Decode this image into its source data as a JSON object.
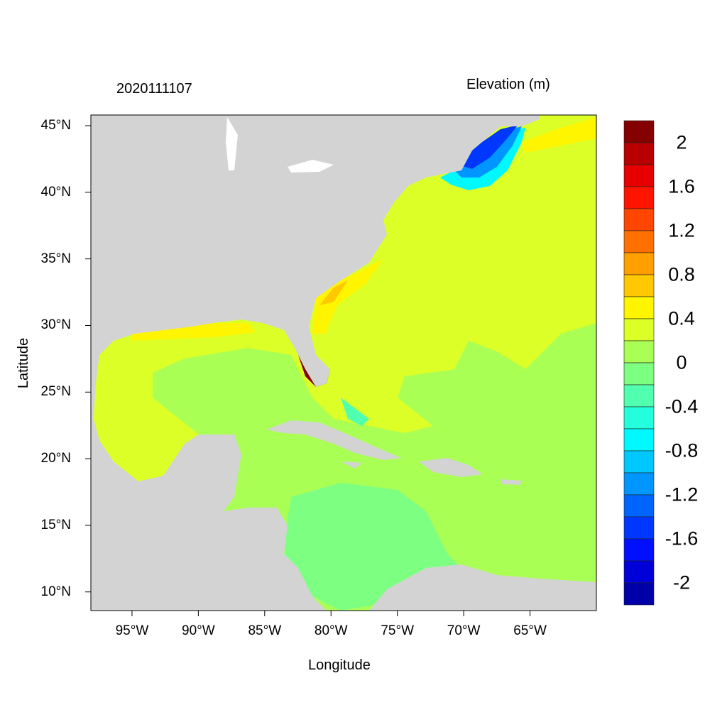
{
  "chart_data": {
    "type": "heatmap",
    "title_left": "2020111107",
    "title_right": "Elevation (m)",
    "xlabel": "Longitude",
    "ylabel": "Latitude",
    "xlim": [
      -98.1,
      -60.0
    ],
    "ylim": [
      8.6,
      45.8
    ],
    "x_ticks": [
      -95,
      -90,
      -85,
      -80,
      -75,
      -70,
      -65
    ],
    "x_tick_labels": [
      "95°W",
      "90°W",
      "85°W",
      "80°W",
      "75°W",
      "70°W",
      "65°W"
    ],
    "y_ticks": [
      10,
      15,
      20,
      25,
      30,
      35,
      40,
      45
    ],
    "y_tick_labels": [
      "10°N",
      "15°N",
      "20°N",
      "25°N",
      "30°N",
      "35°N",
      "40°N",
      "45°N"
    ],
    "colorbar": {
      "levels_step": 0.2,
      "boundaries_min": -2,
      "boundaries_max": 2,
      "tick_labels": [
        "2",
        "1.6",
        "1.2",
        "0.8",
        "0.4",
        "0",
        "-0.4",
        "-0.8",
        "-1.2",
        "-1.6",
        "-2"
      ],
      "colors": [
        "#850000",
        "#b80000",
        "#e60000",
        "#ff1400",
        "#ff4600",
        "#ff7000",
        "#ff9f00",
        "#ffc800",
        "#fff500",
        "#dcff28",
        "#aaff55",
        "#7dff82",
        "#50ffaf",
        "#23ffdc",
        "#00f8ff",
        "#00c8ff",
        "#0096ff",
        "#0064ff",
        "#0037ff",
        "#0010ff",
        "#0000d8",
        "#0000a8"
      ]
    },
    "land_color": "#d3d3d3"
  }
}
